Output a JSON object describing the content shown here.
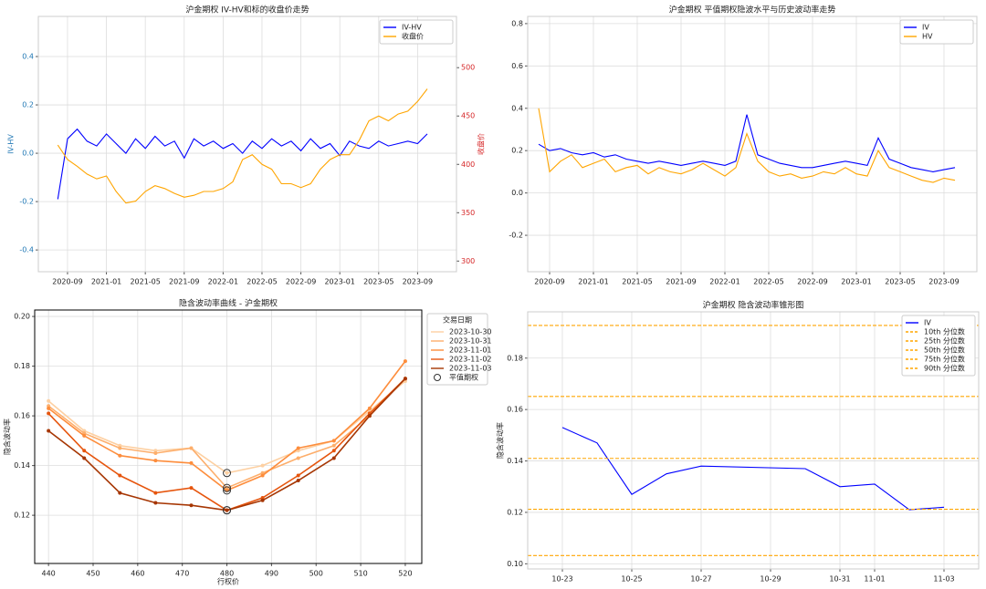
{
  "chart_data": [
    {
      "type": "line",
      "title": "沪金期权 IV-HV和标的收盘价走势",
      "ylabel": "IV-HV",
      "y2label": "收盘价",
      "ylabel_color": "#1f77b4",
      "y2label_color": "#d62728",
      "x": [
        "2020-08",
        "2020-09",
        "2020-10",
        "2020-11",
        "2020-12",
        "2021-01",
        "2021-02",
        "2021-03",
        "2021-04",
        "2021-05",
        "2021-06",
        "2021-07",
        "2021-08",
        "2021-09",
        "2021-10",
        "2021-11",
        "2021-12",
        "2022-01",
        "2022-02",
        "2022-03",
        "2022-04",
        "2022-05",
        "2022-06",
        "2022-07",
        "2022-08",
        "2022-09",
        "2022-10",
        "2022-11",
        "2022-12",
        "2023-01",
        "2023-02",
        "2023-03",
        "2023-04",
        "2023-05",
        "2023-06",
        "2023-07",
        "2023-08",
        "2023-09",
        "2023-10"
      ],
      "xlim": [
        "2020-06",
        "2024-01"
      ],
      "xticks": [
        "2020-09",
        "2021-01",
        "2021-05",
        "2021-09",
        "2022-01",
        "2022-05",
        "2022-09",
        "2023-01",
        "2023-05",
        "2023-09"
      ],
      "ylim": [
        -0.49,
        0.566
      ],
      "yticks": [
        -0.4,
        -0.2,
        {
          "value": 0,
          "label": "0.0"
        },
        0.2,
        0.4
      ],
      "y2lim": [
        289,
        553
      ],
      "y2ticks": [
        300,
        350,
        400,
        450,
        500
      ],
      "grid": true,
      "legend": "upper right",
      "series": [
        {
          "name": "IV-HV",
          "color": "#0000ff",
          "values": [
            -0.19,
            0.06,
            0.1,
            0.05,
            0.03,
            0.08,
            0.04,
            0.0,
            0.06,
            0.02,
            0.07,
            0.03,
            0.05,
            -0.02,
            0.06,
            0.03,
            0.05,
            0.02,
            0.04,
            0.0,
            0.05,
            0.02,
            0.06,
            0.03,
            0.05,
            0.01,
            0.06,
            0.02,
            0.04,
            -0.01,
            0.05,
            0.03,
            0.02,
            0.05,
            0.03,
            0.04,
            0.05,
            0.04,
            0.08
          ]
        },
        {
          "name": "收盘价",
          "color": "#ffa500",
          "axis": "y2",
          "values": [
            420,
            405,
            398,
            390,
            385,
            388,
            372,
            360,
            362,
            372,
            378,
            375,
            370,
            366,
            368,
            372,
            372,
            375,
            382,
            405,
            410,
            400,
            395,
            380,
            380,
            376,
            380,
            395,
            405,
            410,
            410,
            425,
            445,
            450,
            445,
            452,
            455,
            465,
            478
          ]
        }
      ]
    },
    {
      "type": "line",
      "title": "沪金期权 平值期权隐波水平与历史波动率走势",
      "x": [
        "2020-08",
        "2020-09",
        "2020-10",
        "2020-11",
        "2020-12",
        "2021-01",
        "2021-02",
        "2021-03",
        "2021-04",
        "2021-05",
        "2021-06",
        "2021-07",
        "2021-08",
        "2021-09",
        "2021-10",
        "2021-11",
        "2021-12",
        "2022-01",
        "2022-02",
        "2022-03",
        "2022-04",
        "2022-05",
        "2022-06",
        "2022-07",
        "2022-08",
        "2022-09",
        "2022-10",
        "2022-11",
        "2022-12",
        "2023-01",
        "2023-02",
        "2023-03",
        "2023-04",
        "2023-05",
        "2023-06",
        "2023-07",
        "2023-08",
        "2023-09",
        "2023-10"
      ],
      "xlim": [
        "2020-07",
        "2023-12"
      ],
      "xticks": [
        "2020-09",
        "2021-01",
        "2021-05",
        "2021-09",
        "2022-01",
        "2022-05",
        "2022-09",
        "2023-01",
        "2023-05",
        "2023-09"
      ],
      "ylim": [
        -0.372,
        0.834
      ],
      "yticks": [
        -0.2,
        {
          "value": 0,
          "label": "0.0"
        },
        0.2,
        0.4,
        0.6,
        0.8
      ],
      "grid": true,
      "legend": "upper right",
      "series": [
        {
          "name": "IV",
          "color": "#0000ff",
          "values": [
            0.23,
            0.2,
            0.21,
            0.19,
            0.18,
            0.19,
            0.17,
            0.18,
            0.16,
            0.15,
            0.14,
            0.15,
            0.14,
            0.13,
            0.14,
            0.15,
            0.14,
            0.13,
            0.15,
            0.37,
            0.18,
            0.16,
            0.14,
            0.13,
            0.12,
            0.12,
            0.13,
            0.14,
            0.15,
            0.14,
            0.13,
            0.26,
            0.16,
            0.14,
            0.12,
            0.11,
            0.1,
            0.11,
            0.12
          ]
        },
        {
          "name": "HV",
          "color": "#ffa500",
          "values": [
            0.4,
            0.1,
            0.15,
            0.18,
            0.12,
            0.14,
            0.16,
            0.1,
            0.12,
            0.13,
            0.09,
            0.12,
            0.1,
            0.09,
            0.11,
            0.14,
            0.11,
            0.08,
            0.12,
            0.28,
            0.15,
            0.1,
            0.08,
            0.09,
            0.07,
            0.08,
            0.1,
            0.09,
            0.12,
            0.09,
            0.08,
            0.2,
            0.12,
            0.1,
            0.08,
            0.06,
            0.05,
            0.07,
            0.06
          ]
        }
      ]
    },
    {
      "type": "line",
      "title": "隐含波动率曲线 - 沪金期权",
      "xlabel": "行权价",
      "ylabel": "隐含波动率",
      "x": [
        440,
        448,
        456,
        464,
        472,
        480,
        488,
        496,
        504,
        512,
        520
      ],
      "xlim": [
        436.9,
        523.7
      ],
      "xticks": [
        440,
        450,
        460,
        470,
        480,
        490,
        500,
        510,
        520
      ],
      "ylim": [
        0.1006,
        0.2026
      ],
      "yticks": [
        0.12,
        0.14,
        0.16,
        0.18,
        {
          "value": 0.2,
          "label": "0.20"
        }
      ],
      "grid": true,
      "legend": "outside right",
      "legend_title": "交易日期",
      "marker": true,
      "frame": "#000000",
      "atm": {
        "name": "平值期权",
        "strike": 480
      },
      "series": [
        {
          "name": "2023-10-30",
          "color": "#fdd0a2",
          "values": [
            0.166,
            0.154,
            0.148,
            0.146,
            0.147,
            0.137,
            0.14,
            0.146,
            0.15,
            0.162,
            0.174
          ]
        },
        {
          "name": "2023-10-31",
          "color": "#fdae6b",
          "values": [
            0.164,
            0.153,
            0.147,
            0.145,
            0.147,
            0.131,
            0.137,
            0.143,
            0.148,
            0.16,
            0.175
          ]
        },
        {
          "name": "2023-11-01",
          "color": "#fd8d3c",
          "values": [
            0.163,
            0.152,
            0.144,
            0.142,
            0.141,
            0.13,
            0.136,
            0.147,
            0.15,
            0.163,
            0.182
          ]
        },
        {
          "name": "2023-11-02",
          "color": "#e6550d",
          "values": [
            0.161,
            0.146,
            0.136,
            0.129,
            0.131,
            0.122,
            0.127,
            0.136,
            0.146,
            0.161,
            0.175
          ]
        },
        {
          "name": "2023-11-03",
          "color": "#a63603",
          "values": [
            0.154,
            0.143,
            0.129,
            0.125,
            0.124,
            0.122,
            0.126,
            0.134,
            0.143,
            0.16,
            0.175
          ]
        }
      ]
    },
    {
      "type": "line",
      "title": "沪金期权 隐含波动率锥形图",
      "ylabel": "隐含波动率",
      "x": [
        "10-23",
        "10-24",
        "10-25",
        "10-26",
        "10-27",
        "10-30",
        "10-31",
        "11-01",
        "11-02",
        "11-03"
      ],
      "xlim": [
        "10-22",
        "11-04"
      ],
      "xticks": [
        "10-23",
        "10-25",
        "10-27",
        "10-29",
        "10-31",
        "11-01",
        "11-03"
      ],
      "ylim": [
        0.098,
        0.198
      ],
      "yticks": [
        {
          "value": 0.1,
          "label": "0.10"
        },
        0.12,
        0.14,
        0.16,
        0.18
      ],
      "grid": true,
      "legend": "upper right",
      "series": [
        {
          "name": "IV",
          "color": "#0000ff",
          "values": [
            0.153,
            0.147,
            0.127,
            0.135,
            0.138,
            0.137,
            0.13,
            0.131,
            0.121,
            0.122
          ]
        }
      ],
      "quantiles": [
        {
          "name": "10th 分位数",
          "value": 0.1032,
          "color": "#ffa500"
        },
        {
          "name": "25th 分位数",
          "value": 0.1212,
          "color": "#ffa500"
        },
        {
          "name": "50th 分位数",
          "value": 0.141,
          "color": "#ffa500"
        },
        {
          "name": "75th 分位数",
          "value": 0.1651,
          "color": "#ffa500"
        },
        {
          "name": "90th 分位数",
          "value": 0.1927,
          "color": "#ffa500"
        }
      ]
    }
  ]
}
